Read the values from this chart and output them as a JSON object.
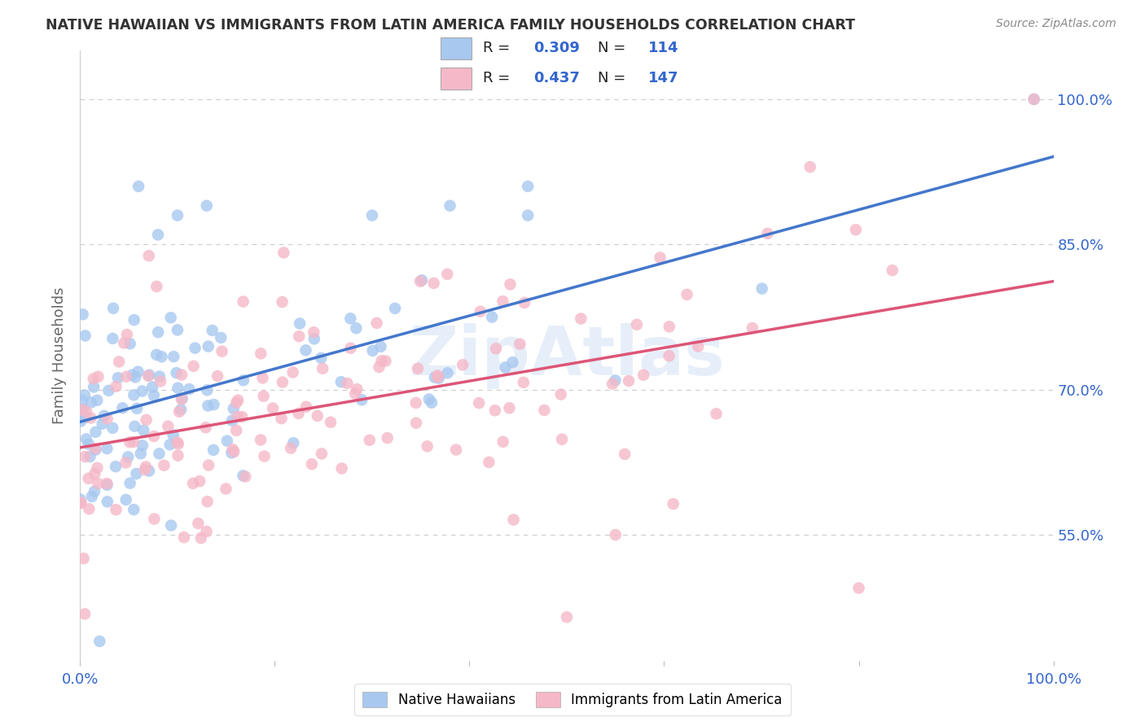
{
  "title": "NATIVE HAWAIIAN VS IMMIGRANTS FROM LATIN AMERICA FAMILY HOUSEHOLDS CORRELATION CHART",
  "source": "Source: ZipAtlas.com",
  "ylabel": "Family Households",
  "xlim": [
    0,
    1.0
  ],
  "ylim": [
    0.42,
    1.05
  ],
  "yticks": [
    0.55,
    0.7,
    0.85,
    1.0
  ],
  "ytick_labels": [
    "55.0%",
    "70.0%",
    "85.0%",
    "100.0%"
  ],
  "xticks": [
    0.0,
    0.2,
    0.4,
    0.6,
    0.8,
    1.0
  ],
  "xtick_labels": [
    "0.0%",
    "",
    "",
    "",
    "",
    "100.0%"
  ],
  "blue_R": "0.309",
  "blue_N": "114",
  "pink_R": "0.437",
  "pink_N": "147",
  "blue_color": "#a8c8f0",
  "pink_color": "#f5b8c8",
  "blue_line_color": "#4477cc",
  "pink_line_color": "#dd5577",
  "watermark": "ZipAtlas",
  "background_color": "#ffffff",
  "grid_color": "#cccccc",
  "title_color": "#333333",
  "axis_label_color": "#3366cc",
  "legend_text_color": "#222222",
  "source_color": "#888888",
  "ylabel_color": "#666666"
}
